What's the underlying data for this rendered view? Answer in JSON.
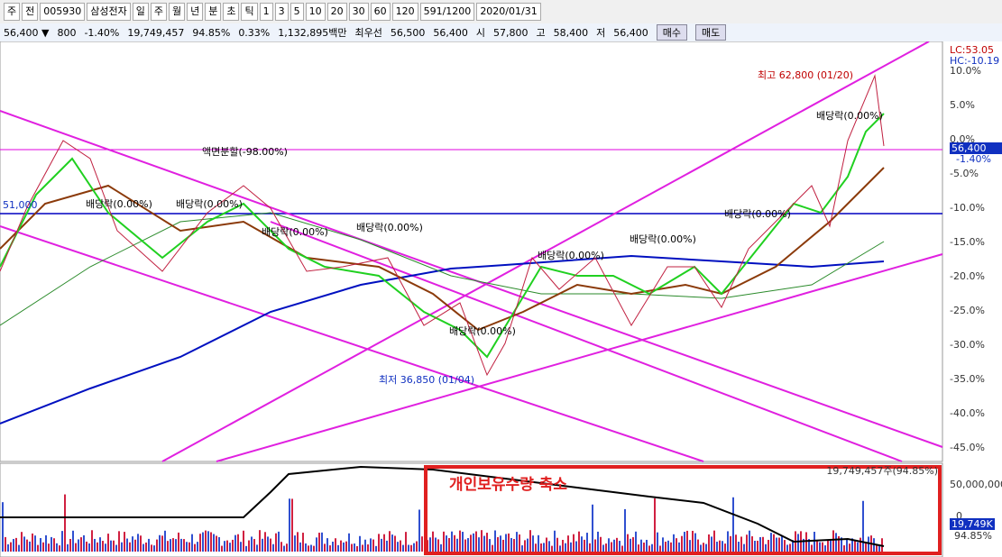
{
  "toolbar": {
    "items": [
      "주",
      "전",
      "005930",
      "삼성전자",
      "일",
      "주",
      "월",
      "년",
      "분",
      "초",
      "틱",
      "1",
      "3",
      "5",
      "10",
      "20",
      "30",
      "60",
      "120",
      "591/1200",
      "2020/01/31"
    ]
  },
  "infobar": {
    "items": [
      "56,400 ▼",
      "800",
      "-1.40%",
      "19,749,457",
      "94.85%",
      "0.33%",
      "1,132,895백만",
      "최우선",
      "56,500",
      "56,400",
      "시",
      "57,800",
      "고",
      "58,400",
      "저",
      "56,400"
    ],
    "buttons": [
      "매수",
      "매도"
    ]
  },
  "chart": {
    "annotations": [
      "최고 62,800 (01/20)",
      "최저 36,850 (01/04)",
      "액면분할(-98.00%)",
      "배당락(0.00%)",
      "배당락(0.00%)",
      "배당락(0.00%)",
      "배당락(0.00%)",
      "배당락(0.00%)",
      "배당락(0.00%)",
      "배당락(0.00%)",
      "배당락(0.00%)",
      "배당락(0.00%)",
      "51,000"
    ],
    "axis_labels": [
      "LC:53.05",
      "HC:-10.19",
      "10.0%",
      "5.0%",
      "0.0%",
      "-5.0%",
      "-10.0%",
      "-15.0%",
      "-20.0%",
      "-25.0%",
      "-30.0%",
      "-35.0%",
      "-40.0%",
      "-45.0%"
    ],
    "price_label": "56,400",
    "change_label": "-1.40%"
  },
  "volume": {
    "header": "19,749,457주(94.85%)",
    "note": "개인보유수량 축소",
    "axis_labels": [
      "50,000,000",
      "0"
    ],
    "current_label": "19,749K",
    "ratio_label": "94.85%"
  }
}
